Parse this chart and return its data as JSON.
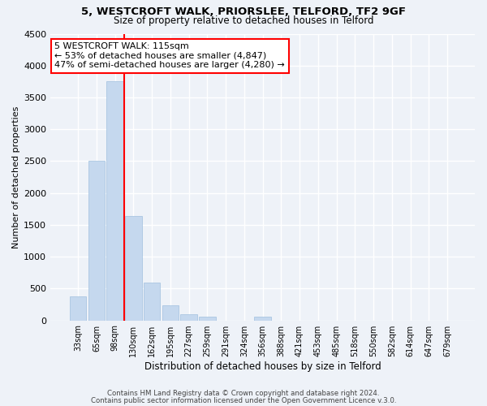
{
  "title1": "5, WESTCROFT WALK, PRIORSLEE, TELFORD, TF2 9GF",
  "title2": "Size of property relative to detached houses in Telford",
  "xlabel": "Distribution of detached houses by size in Telford",
  "ylabel": "Number of detached properties",
  "categories": [
    "33sqm",
    "65sqm",
    "98sqm",
    "130sqm",
    "162sqm",
    "195sqm",
    "227sqm",
    "259sqm",
    "291sqm",
    "324sqm",
    "356sqm",
    "388sqm",
    "421sqm",
    "453sqm",
    "485sqm",
    "518sqm",
    "550sqm",
    "582sqm",
    "614sqm",
    "647sqm",
    "679sqm"
  ],
  "values": [
    380,
    2500,
    3750,
    1640,
    600,
    240,
    100,
    55,
    0,
    0,
    55,
    0,
    0,
    0,
    0,
    0,
    0,
    0,
    0,
    0,
    0
  ],
  "bar_color": "#c5d8ee",
  "bar_edge_color": "#a0c0df",
  "vline_x_index": 2.5,
  "vline_color": "red",
  "annotation_text": "5 WESTCROFT WALK: 115sqm\n← 53% of detached houses are smaller (4,847)\n47% of semi-detached houses are larger (4,280) →",
  "annotation_box_color": "white",
  "annotation_box_edge": "red",
  "ylim": [
    0,
    4500
  ],
  "yticks": [
    0,
    500,
    1000,
    1500,
    2000,
    2500,
    3000,
    3500,
    4000,
    4500
  ],
  "footer1": "Contains HM Land Registry data © Crown copyright and database right 2024.",
  "footer2": "Contains public sector information licensed under the Open Government Licence v.3.0.",
  "bg_color": "#eef2f8",
  "grid_color": "white"
}
